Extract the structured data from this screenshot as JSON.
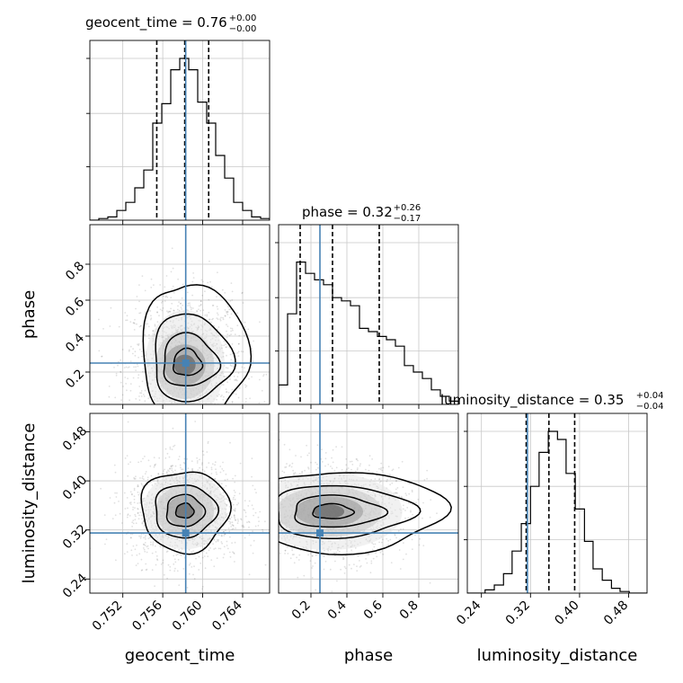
{
  "chart_data": {
    "type": "corner",
    "parameters": [
      "geocent_time",
      "phase",
      "luminosity_distance"
    ],
    "truth": {
      "geocent_time": 0.7583,
      "phase": 0.25,
      "luminosity_distance": 0.315
    },
    "truth_color": "#4682b4",
    "quantiles": {
      "geocent_time": [
        0.7554,
        0.7582,
        0.7606
      ],
      "phase": [
        0.14,
        0.32,
        0.58
      ],
      "luminosity_distance": [
        0.313,
        0.35,
        0.392
      ]
    },
    "titles": [
      {
        "param": "geocent_time",
        "label": "geocent_time = 0.76",
        "plus": "+0.00",
        "minus": "−0.00"
      },
      {
        "param": "phase",
        "label": "phase = 0.32",
        "plus": "+0.26",
        "minus": "−0.17"
      },
      {
        "param": "luminosity_distance",
        "label": "luminosity_distance = 0.35",
        "plus": "+0.04",
        "minus": "−0.04"
      }
    ],
    "ranges": {
      "geocent_time": [
        0.7487,
        0.7667
      ],
      "phase": [
        0.02,
        1.02
      ],
      "luminosity_distance": [
        0.217,
        0.51
      ]
    },
    "ticks": {
      "geocent_time": [
        0.752,
        0.756,
        0.76,
        0.764
      ],
      "phase": [
        0.2,
        0.4,
        0.6,
        0.8
      ],
      "luminosity_distance": [
        0.24,
        0.32,
        0.4,
        0.48
      ]
    },
    "tick_labels": {
      "geocent_time": [
        "0.752",
        "0.756",
        "0.760",
        "0.764"
      ],
      "phase": [
        "0.2",
        "0.4",
        "0.6",
        "0.8"
      ],
      "luminosity_distance": [
        "0.24",
        "0.32",
        "0.40",
        "0.48"
      ]
    },
    "axis_labels": {
      "x": [
        "geocent_time",
        "phase",
        "luminosity_distance"
      ],
      "y": [
        "phase",
        "luminosity_distance"
      ]
    },
    "histograms": {
      "geocent_time": {
        "edges": [
          0.7487,
          0.7496,
          0.7505,
          0.7514,
          0.7523,
          0.7532,
          0.7541,
          0.755,
          0.7559,
          0.7568,
          0.7577,
          0.7586,
          0.7595,
          0.7604,
          0.7613,
          0.7622,
          0.7631,
          0.764,
          0.7649,
          0.7658,
          0.7667
        ],
        "heights": [
          0.0,
          0.01,
          0.02,
          0.06,
          0.11,
          0.2,
          0.31,
          0.6,
          0.72,
          0.93,
          1.0,
          0.93,
          0.73,
          0.6,
          0.4,
          0.26,
          0.11,
          0.06,
          0.02,
          0.01
        ]
      },
      "phase": {
        "edges": [
          0.02,
          0.07,
          0.12,
          0.17,
          0.22,
          0.27,
          0.32,
          0.37,
          0.42,
          0.47,
          0.52,
          0.57,
          0.62,
          0.67,
          0.72,
          0.77,
          0.82,
          0.87,
          0.92,
          0.97,
          1.02
        ],
        "heights": [
          0.12,
          0.56,
          0.88,
          0.81,
          0.77,
          0.74,
          0.66,
          0.64,
          0.61,
          0.47,
          0.45,
          0.42,
          0.4,
          0.36,
          0.24,
          0.2,
          0.16,
          0.09,
          0.05,
          0.02
        ]
      },
      "luminosity_distance": {
        "edges": [
          0.217,
          0.232,
          0.246,
          0.261,
          0.276,
          0.29,
          0.305,
          0.32,
          0.334,
          0.349,
          0.364,
          0.378,
          0.393,
          0.408,
          0.422,
          0.437,
          0.452,
          0.466,
          0.481,
          0.496,
          0.51
        ],
        "heights": [
          0.0,
          0.0,
          0.02,
          0.05,
          0.12,
          0.26,
          0.43,
          0.66,
          0.87,
          1.0,
          0.95,
          0.74,
          0.52,
          0.32,
          0.15,
          0.08,
          0.03,
          0.01,
          0.0,
          0.0
        ]
      }
    },
    "pairs": [
      {
        "x": "geocent_time",
        "y": "phase",
        "center": [
          0.7582,
          0.24
        ],
        "spread": [
          0.0026,
          0.18
        ],
        "levels": [
          [
            0.00115,
            0.06
          ],
          [
            0.0022,
            0.12
          ],
          [
            0.0031,
            0.2
          ],
          [
            0.0042,
            0.32
          ]
        ],
        "offset": [
          -0.0003,
          0.1
        ]
      },
      {
        "x": "geocent_time",
        "y": "luminosity_distance",
        "center": [
          0.7582,
          0.351
        ],
        "spread": [
          0.0026,
          0.037
        ],
        "levels": [
          [
            0.0009,
            0.012
          ],
          [
            0.0019,
            0.026
          ],
          [
            0.0031,
            0.043
          ],
          [
            0.0044,
            0.066
          ]
        ],
        "offset": [
          0,
          0
        ]
      },
      {
        "x": "phase",
        "y": "luminosity_distance",
        "center": [
          0.3,
          0.35
        ],
        "spread": [
          0.2,
          0.035
        ],
        "levels": [
          [
            0.09,
            0.012
          ],
          [
            0.2,
            0.026
          ],
          [
            0.31,
            0.043
          ],
          [
            0.43,
            0.066
          ]
        ],
        "offset": [
          0.1,
          0.0
        ]
      }
    ],
    "grid": true,
    "legend": "none"
  }
}
